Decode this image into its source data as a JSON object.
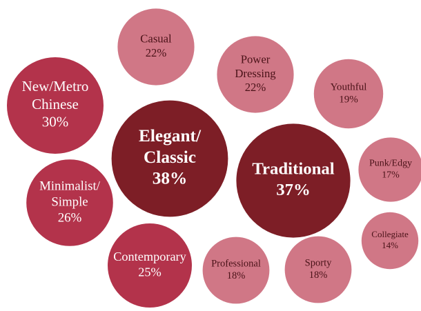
{
  "chart_data": {
    "type": "bubble",
    "categories": [
      [
        "Elegant/",
        "Classic"
      ],
      [
        "Traditional"
      ],
      [
        "New/Metro",
        "Chinese"
      ],
      [
        "Minimalist/",
        "Simple"
      ],
      [
        "Contemporary"
      ],
      [
        "Casual"
      ],
      [
        "Power",
        "Dressing"
      ],
      [
        "Youthful"
      ],
      [
        "Professional"
      ],
      [
        "Sporty"
      ],
      [
        "Punk/Edgy"
      ],
      [
        "Collegiate"
      ]
    ],
    "values": [
      38,
      37,
      30,
      26,
      25,
      22,
      22,
      19,
      18,
      18,
      17,
      14
    ],
    "value_labels": [
      "38%",
      "37%",
      "30%",
      "26%",
      "25%",
      "22%",
      "22%",
      "19%",
      "18%",
      "18%",
      "17%",
      "14%"
    ],
    "colors": [
      "#7d1e26",
      "#7d1e26",
      "#b3334b",
      "#b3334b",
      "#b3334b",
      "#d07786",
      "#d07786",
      "#d07786",
      "#d07786",
      "#d07786",
      "#d07786",
      "#d07786"
    ]
  }
}
